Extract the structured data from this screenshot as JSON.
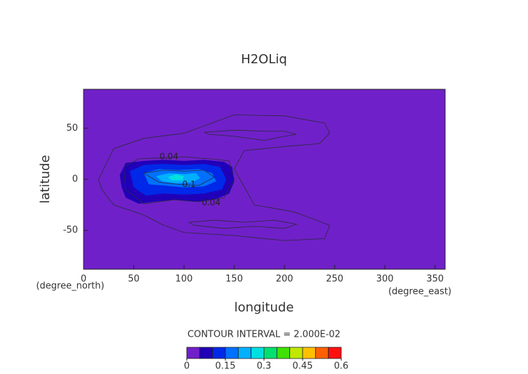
{
  "chart_data": {
    "type": "contour",
    "title": "H2OLiq",
    "xlabel": "longitude",
    "ylabel": "latitude",
    "xunit": "(degree_east)",
    "yunit": "(degree_north)",
    "note": "CONTOUR INTERVAL = 2.000E-02",
    "xlim": [
      0,
      360
    ],
    "ylim": [
      -88,
      88
    ],
    "xticks": [
      0,
      50,
      100,
      150,
      200,
      250,
      300,
      350
    ],
    "yticks": [
      -50,
      0,
      50
    ],
    "background": "#7020c8",
    "line_color": "#2a2a3a",
    "colorbar": {
      "bounds": [
        0,
        0.05,
        0.1,
        0.15,
        0.2,
        0.25,
        0.3,
        0.35,
        0.4,
        0.45,
        0.5,
        0.55,
        0.6
      ],
      "colors": [
        "#7020c8",
        "#2000b8",
        "#0028e8",
        "#0070ff",
        "#00b0ff",
        "#00e0e0",
        "#00e070",
        "#40e000",
        "#c0e800",
        "#ffc000",
        "#ff6000",
        "#ff1010"
      ],
      "ticks": [
        0,
        0.15,
        0.3,
        0.45,
        0.6
      ]
    },
    "fills": [
      {
        "level": 0.05,
        "lon": [
          36,
          42,
          60,
          80,
          100,
          120,
          140,
          148,
          150,
          145,
          130,
          110,
          90,
          70,
          55,
          42,
          38
        ],
        "lat": [
          4,
          16,
          18,
          19,
          18,
          19,
          17,
          12,
          -2,
          -14,
          -20,
          -22,
          -20,
          -22,
          -24,
          -18,
          -8
        ]
      },
      {
        "level": 0.1,
        "lon": [
          46,
          60,
          80,
          100,
          120,
          136,
          142,
          138,
          120,
          100,
          80,
          62,
          50
        ],
        "lat": [
          8,
          14,
          15,
          14,
          15,
          12,
          0,
          -10,
          -14,
          -15,
          -14,
          -16,
          -8
        ]
      },
      {
        "level": 0.15,
        "lon": [
          60,
          75,
          95,
          115,
          128,
          132,
          120,
          100,
          80,
          65
        ],
        "lat": [
          6,
          10,
          9,
          10,
          6,
          -2,
          -7,
          -8,
          -6,
          -5
        ]
      },
      {
        "level": 0.2,
        "lon": [
          72,
          85,
          100,
          112,
          116,
          108,
          92,
          78
        ],
        "lat": [
          3,
          6,
          5,
          6,
          1,
          -3,
          -4,
          -2
        ]
      },
      {
        "level": 0.25,
        "lon": [
          84,
          92,
          100,
          98,
          88
        ],
        "lat": [
          2,
          5,
          3,
          -1,
          -1
        ]
      }
    ],
    "contours": [
      {
        "level": 0.02,
        "lon": [
          15,
          30,
          60,
          100,
          150,
          200,
          240,
          245,
          235,
          200,
          160,
          150,
          170,
          210,
          245,
          240,
          200,
          150,
          100,
          80,
          60,
          30,
          18
        ],
        "lat": [
          0,
          30,
          40,
          45,
          63,
          62,
          55,
          45,
          35,
          32,
          28,
          10,
          -25,
          -32,
          -45,
          -58,
          -60,
          -55,
          -52,
          -45,
          -35,
          -25,
          -10
        ]
      },
      {
        "level": 0.04,
        "lon": [
          40,
          55,
          80,
          100,
          125,
          145,
          150,
          140,
          115,
          90,
          60,
          42
        ],
        "lat": [
          12,
          20,
          21,
          22,
          20,
          18,
          0,
          -18,
          -22,
          -20,
          -24,
          -10
        ]
      },
      {
        "level": 0.04,
        "lon": [
          120,
          150,
          180,
          200,
          212,
          200,
          180,
          150,
          125
        ],
        "lat": [
          46,
          48,
          47,
          47,
          44,
          42,
          38,
          42,
          44
        ]
      },
      {
        "level": 0.04,
        "lon": [
          105,
          130,
          160,
          190,
          212,
          200,
          170,
          140,
          110
        ],
        "lat": [
          -42,
          -40,
          -42,
          -40,
          -44,
          -48,
          -46,
          -48,
          -45
        ]
      },
      {
        "level": 0.1,
        "lon": [
          60,
          80,
          100,
          120,
          130,
          115,
          95,
          75
        ],
        "lat": [
          6,
          9,
          8,
          9,
          2,
          -6,
          -5,
          -3
        ]
      }
    ],
    "contour_labels": [
      {
        "level": 0.04,
        "lon": 85,
        "lat": 22
      },
      {
        "level": 0.04,
        "lon": 127,
        "lat": -23
      },
      {
        "level": 0.1,
        "lon": 105,
        "lat": -5
      }
    ]
  }
}
